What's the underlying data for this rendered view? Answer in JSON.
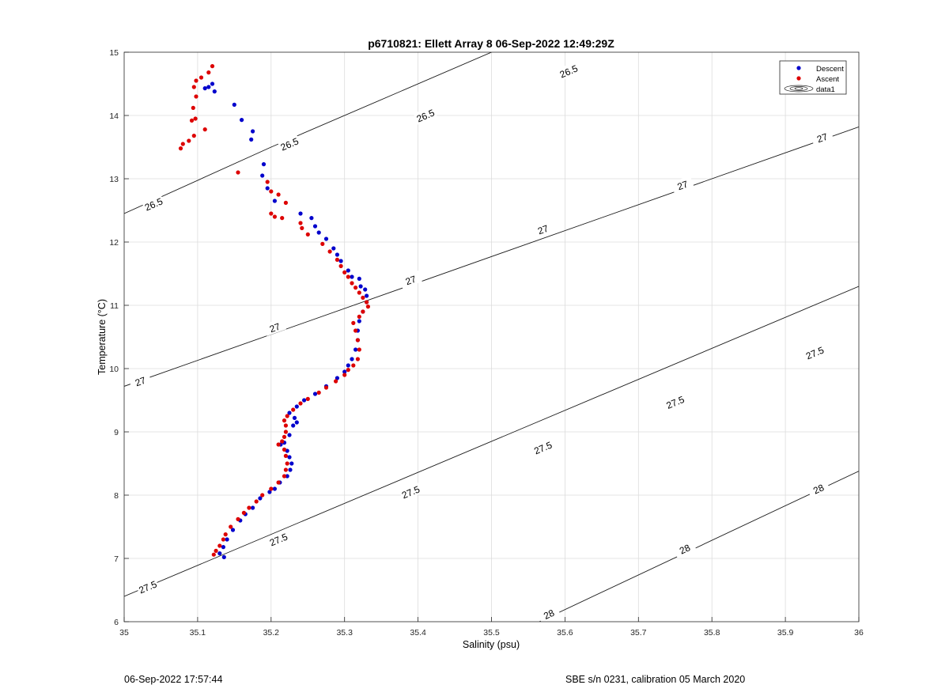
{
  "chart_data": {
    "type": "scatter",
    "title": "p6710821: Ellett Array 8 06-Sep-2022 12:49:29Z",
    "xlabel": "Salinity (psu)",
    "ylabel": "Temperature (°C)",
    "xlim": [
      35,
      36
    ],
    "ylim": [
      6,
      15
    ],
    "xticks": [
      35,
      35.1,
      35.2,
      35.3,
      35.4,
      35.5,
      35.6,
      35.7,
      35.8,
      35.9,
      36
    ],
    "xtick_labels": [
      "35",
      "35.1",
      "35.2",
      "35.3",
      "35.4",
      "35.5",
      "35.6",
      "35.7",
      "35.8",
      "35.9",
      "36"
    ],
    "yticks": [
      6,
      7,
      8,
      9,
      10,
      11,
      12,
      13,
      14,
      15
    ],
    "ytick_labels": [
      "6",
      "7",
      "8",
      "9",
      "10",
      "11",
      "12",
      "13",
      "14",
      "15"
    ],
    "grid": true,
    "legend_position": "top-right",
    "legend": [
      "Descent",
      "Ascent",
      "data1"
    ],
    "series": [
      {
        "name": "Descent",
        "color": "#0000cc",
        "points": [
          [
            35.115,
            14.45
          ],
          [
            35.12,
            14.5
          ],
          [
            35.123,
            14.38
          ],
          [
            35.11,
            14.43
          ],
          [
            35.15,
            14.17
          ],
          [
            35.16,
            13.93
          ],
          [
            35.175,
            13.75
          ],
          [
            35.173,
            13.62
          ],
          [
            35.19,
            13.23
          ],
          [
            35.188,
            13.05
          ],
          [
            35.195,
            12.85
          ],
          [
            35.205,
            12.65
          ],
          [
            35.24,
            12.45
          ],
          [
            35.255,
            12.38
          ],
          [
            35.26,
            12.25
          ],
          [
            35.265,
            12.15
          ],
          [
            35.275,
            12.05
          ],
          [
            35.285,
            11.9
          ],
          [
            35.29,
            11.8
          ],
          [
            35.295,
            11.7
          ],
          [
            35.305,
            11.55
          ],
          [
            35.31,
            11.45
          ],
          [
            35.32,
            11.42
          ],
          [
            35.322,
            11.3
          ],
          [
            35.328,
            11.25
          ],
          [
            35.33,
            11.15
          ],
          [
            35.33,
            11.05
          ],
          [
            35.325,
            10.9
          ],
          [
            35.32,
            10.75
          ],
          [
            35.318,
            10.6
          ],
          [
            35.318,
            10.45
          ],
          [
            35.315,
            10.3
          ],
          [
            35.31,
            10.15
          ],
          [
            35.305,
            10.05
          ],
          [
            35.3,
            9.95
          ],
          [
            35.29,
            9.85
          ],
          [
            35.275,
            9.72
          ],
          [
            35.26,
            9.6
          ],
          [
            35.245,
            9.5
          ],
          [
            35.235,
            9.4
          ],
          [
            35.225,
            9.3
          ],
          [
            35.232,
            9.22
          ],
          [
            35.235,
            9.15
          ],
          [
            35.23,
            9.1
          ],
          [
            35.225,
            8.95
          ],
          [
            35.218,
            8.83
          ],
          [
            35.213,
            8.8
          ],
          [
            35.222,
            8.7
          ],
          [
            35.225,
            8.6
          ],
          [
            35.228,
            8.5
          ],
          [
            35.226,
            8.4
          ],
          [
            35.222,
            8.3
          ],
          [
            35.212,
            8.2
          ],
          [
            35.205,
            8.1
          ],
          [
            35.198,
            8.05
          ],
          [
            35.185,
            7.95
          ],
          [
            35.175,
            7.8
          ],
          [
            35.165,
            7.7
          ],
          [
            35.158,
            7.6
          ],
          [
            35.148,
            7.45
          ],
          [
            35.14,
            7.3
          ],
          [
            35.135,
            7.18
          ],
          [
            35.13,
            7.08
          ],
          [
            35.136,
            7.02
          ]
        ]
      },
      {
        "name": "Ascent",
        "color": "#dd0000",
        "points": [
          [
            35.12,
            14.78
          ],
          [
            35.115,
            14.68
          ],
          [
            35.105,
            14.6
          ],
          [
            35.098,
            14.55
          ],
          [
            35.095,
            14.45
          ],
          [
            35.098,
            14.3
          ],
          [
            35.094,
            14.12
          ],
          [
            35.097,
            13.95
          ],
          [
            35.092,
            13.92
          ],
          [
            35.095,
            13.68
          ],
          [
            35.088,
            13.6
          ],
          [
            35.08,
            13.55
          ],
          [
            35.077,
            13.48
          ],
          [
            35.11,
            13.78
          ],
          [
            35.155,
            13.1
          ],
          [
            35.195,
            12.95
          ],
          [
            35.2,
            12.8
          ],
          [
            35.21,
            12.75
          ],
          [
            35.22,
            12.62
          ],
          [
            35.2,
            12.45
          ],
          [
            35.205,
            12.4
          ],
          [
            35.215,
            12.38
          ],
          [
            35.24,
            12.3
          ],
          [
            35.242,
            12.22
          ],
          [
            35.25,
            12.12
          ],
          [
            35.27,
            11.97
          ],
          [
            35.28,
            11.85
          ],
          [
            35.29,
            11.72
          ],
          [
            35.295,
            11.62
          ],
          [
            35.3,
            11.52
          ],
          [
            35.305,
            11.45
          ],
          [
            35.31,
            11.35
          ],
          [
            35.315,
            11.28
          ],
          [
            35.32,
            11.2
          ],
          [
            35.325,
            11.12
          ],
          [
            35.33,
            11.05
          ],
          [
            35.332,
            10.98
          ],
          [
            35.325,
            10.9
          ],
          [
            35.32,
            10.82
          ],
          [
            35.312,
            10.72
          ],
          [
            35.315,
            10.6
          ],
          [
            35.318,
            10.45
          ],
          [
            35.32,
            10.3
          ],
          [
            35.318,
            10.15
          ],
          [
            35.312,
            10.05
          ],
          [
            35.305,
            9.98
          ],
          [
            35.3,
            9.9
          ],
          [
            35.288,
            9.8
          ],
          [
            35.275,
            9.7
          ],
          [
            35.265,
            9.62
          ],
          [
            35.25,
            9.52
          ],
          [
            35.24,
            9.45
          ],
          [
            35.23,
            9.35
          ],
          [
            35.222,
            9.25
          ],
          [
            35.218,
            9.18
          ],
          [
            35.22,
            9.1
          ],
          [
            35.22,
            9.0
          ],
          [
            35.218,
            8.92
          ],
          [
            35.215,
            8.85
          ],
          [
            35.21,
            8.8
          ],
          [
            35.218,
            8.72
          ],
          [
            35.22,
            8.62
          ],
          [
            35.222,
            8.5
          ],
          [
            35.22,
            8.4
          ],
          [
            35.218,
            8.3
          ],
          [
            35.21,
            8.2
          ],
          [
            35.2,
            8.1
          ],
          [
            35.188,
            8.0
          ],
          [
            35.18,
            7.9
          ],
          [
            35.17,
            7.8
          ],
          [
            35.163,
            7.72
          ],
          [
            35.155,
            7.62
          ],
          [
            35.145,
            7.5
          ],
          [
            35.138,
            7.38
          ],
          [
            35.135,
            7.3
          ],
          [
            35.13,
            7.2
          ],
          [
            35.125,
            7.12
          ],
          [
            35.122,
            7.06
          ]
        ]
      }
    ],
    "contours": [
      {
        "label": "26.5",
        "points": [
          [
            35.0,
            12.45
          ],
          [
            35.2,
            13.5
          ],
          [
            36.0,
            17.5
          ]
        ],
        "label_positions": [
          [
            35.04,
            12.6
          ],
          [
            35.225,
            13.55
          ],
          [
            35.41,
            14.0
          ],
          [
            35.605,
            14.7
          ]
        ]
      },
      {
        "label": "27",
        "points": [
          [
            35.0,
            9.72
          ],
          [
            36.0,
            13.82
          ]
        ],
        "label_positions": [
          [
            35.022,
            9.8
          ],
          [
            35.205,
            10.65
          ],
          [
            35.39,
            11.4
          ],
          [
            35.57,
            12.2
          ],
          [
            35.76,
            12.9
          ],
          [
            35.95,
            13.65
          ]
        ]
      },
      {
        "label": "27.5",
        "points": [
          [
            35.0,
            6.4
          ],
          [
            36.0,
            11.3
          ]
        ],
        "label_positions": [
          [
            35.032,
            6.55
          ],
          [
            35.21,
            7.3
          ],
          [
            35.39,
            8.05
          ],
          [
            35.57,
            8.75
          ],
          [
            35.75,
            9.47
          ],
          [
            35.94,
            10.25
          ]
        ]
      },
      {
        "label": "28",
        "points": [
          [
            35.565,
            6.0
          ],
          [
            36.0,
            8.38
          ]
        ],
        "label_positions": [
          [
            35.578,
            6.12
          ],
          [
            35.763,
            7.15
          ],
          [
            35.945,
            8.1
          ]
        ]
      }
    ]
  },
  "footer": {
    "left": "06-Sep-2022 17:57:44",
    "right": "SBE s/n 0231, calibration 05 March 2020"
  }
}
